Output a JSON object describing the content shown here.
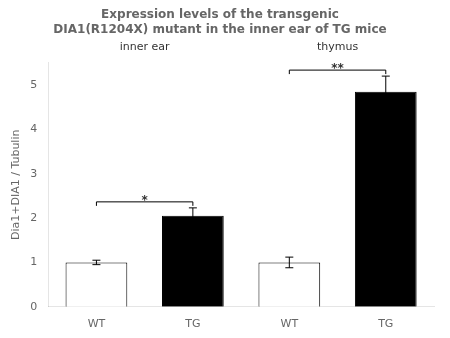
{
  "chart_data": {
    "type": "bar",
    "title": "Expression levels of the transgenic DIA1(R1204X) mutant in the inner ear of TG mice",
    "categories": [
      "WT",
      "TG",
      "WT",
      "TG"
    ],
    "values": [
      1.0,
      2.05,
      1.0,
      4.85
    ],
    "errors": [
      0.05,
      0.18,
      0.12,
      0.35
    ],
    "colors": [
      "white",
      "black",
      "white",
      "black"
    ],
    "ylabel": "Dia1+DIA1 / Tubulin",
    "ylim": [
      0,
      5.5
    ],
    "yticks": [
      0,
      1,
      2,
      3,
      4,
      5
    ],
    "grid": false,
    "group_labels": [
      "inner ear",
      "thymus"
    ],
    "significance": [
      "*",
      "**"
    ]
  }
}
